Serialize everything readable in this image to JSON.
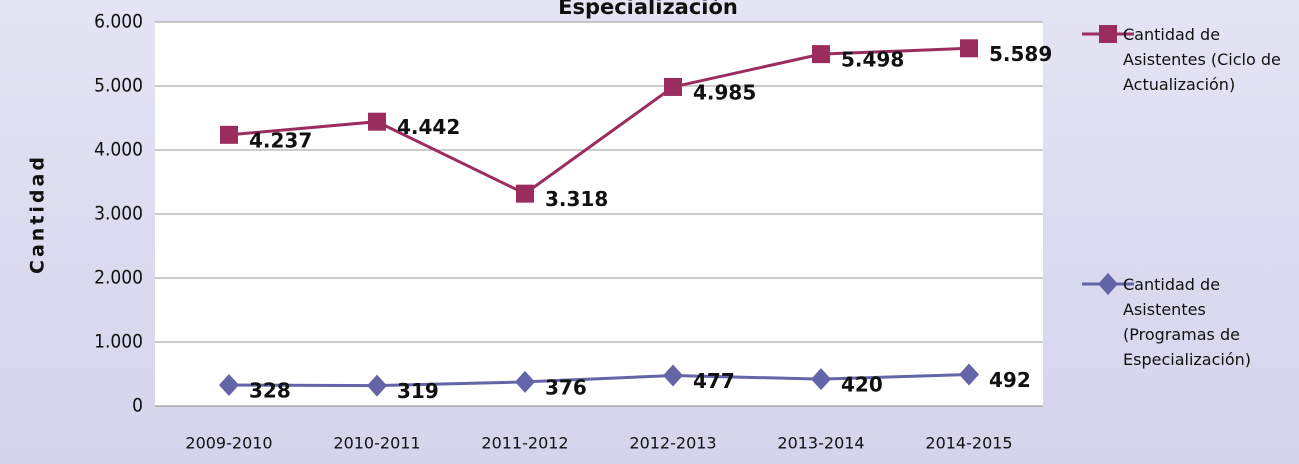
{
  "chart_data": {
    "type": "line",
    "title": "Especialización",
    "y_label": "Cantidad",
    "categories": [
      "2009-2010",
      "2010-2011",
      "2011-2012",
      "2012-2013",
      "2013-2014",
      "2014-2015"
    ],
    "series": [
      {
        "name": "Cantidad de Asistentes (Ciclo de Actualización)",
        "color": "#9b2d5e",
        "marker": "square",
        "values": [
          4237,
          4442,
          3318,
          4985,
          5498,
          5589
        ],
        "value_labels": [
          "4.237",
          "4.442",
          "3.318",
          "4.985",
          "5.498",
          "5.589"
        ]
      },
      {
        "name": "Cantidad de Asistentes (Programas de Especialización)",
        "color": "#6464a8",
        "marker": "diamond",
        "values": [
          328,
          319,
          376,
          477,
          420,
          492
        ],
        "value_labels": [
          "328",
          "319",
          "376",
          "477",
          "420",
          "492"
        ]
      }
    ],
    "ylim": [
      0,
      6000
    ],
    "yticks": [
      0,
      {
        "value": 1000,
        "label": "1.000"
      },
      {
        "value": 2000,
        "label": "2.000"
      },
      {
        "value": 3000,
        "label": "3.000"
      },
      {
        "value": 4000,
        "label": "4.000"
      },
      {
        "value": 5000,
        "label": "5.000"
      },
      {
        "value": 6000,
        "label": "6.000"
      }
    ],
    "grid": true
  }
}
